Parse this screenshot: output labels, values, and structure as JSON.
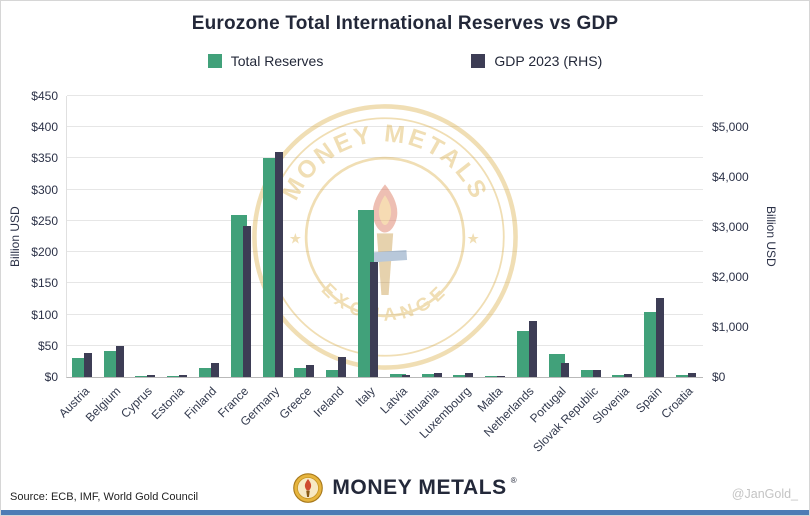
{
  "title": "Eurozone Total International Reserves vs GDP",
  "legend": [
    {
      "label": "Total Reserves",
      "color": "#41A17A"
    },
    {
      "label": "GDP 2023 (RHS)",
      "color": "#3D3D55"
    }
  ],
  "watermark": {
    "top_text": "MONEY METALS",
    "bottom_text": "EXCHANGE"
  },
  "footer": {
    "logo_text": "MONEY METALS",
    "reg_mark": "®",
    "source": "Source: ECB, IMF, World Gold Council",
    "handle": "@JanGold_"
  },
  "colors": {
    "reserves_green": "#41A17A",
    "gdp_navy": "#3D3D55",
    "accent_bar": "#4D7CB5",
    "watermark_gold": "#D9A93C",
    "title_text": "#232839"
  },
  "chart_data": {
    "type": "bar",
    "title": "Eurozone Total International Reserves vs GDP",
    "categories": [
      "Austria",
      "Belgium",
      "Cyprus",
      "Estonia",
      "Finland",
      "France",
      "Germany",
      "Greece",
      "Ireland",
      "Italy",
      "Latvia",
      "Lithuania",
      "Luxembourg",
      "Malta",
      "Netherlands",
      "Portugal",
      "Slovak Republic",
      "Slovenia",
      "Spain",
      "Croatia"
    ],
    "series": [
      {
        "name": "Total Reserves",
        "axis": "left",
        "unit": "Billion USD",
        "color": "#41A17A",
        "values": [
          30,
          42,
          2,
          2,
          15,
          260,
          350,
          14,
          11,
          267,
          5,
          5,
          3,
          1,
          74,
          37,
          11,
          3,
          104,
          3
        ]
      },
      {
        "name": "GDP 2023 (RHS)",
        "axis": "right",
        "unit": "Billion USD",
        "color": "#3D3D55",
        "values": [
          475,
          625,
          35,
          40,
          280,
          3030,
          4500,
          240,
          410,
          2300,
          45,
          80,
          85,
          20,
          1120,
          290,
          135,
          68,
          1580,
          80
        ]
      }
    ],
    "left_axis": {
      "label": "Billion USD",
      "min": 0,
      "max": 450,
      "tick_step": 50,
      "tick_values": [
        0,
        50,
        100,
        150,
        200,
        250,
        300,
        350,
        400,
        450
      ],
      "tick_labels": [
        "$0",
        "$50",
        "$100",
        "$150",
        "$200",
        "$250",
        "$300",
        "$350",
        "$400",
        "$450"
      ]
    },
    "right_axis": {
      "label": "Billion USD",
      "min": 0,
      "max": 5000,
      "tick_step": 1000,
      "units_per_left_unit": 12.5,
      "tick_values": [
        0,
        1000,
        2000,
        3000,
        4000,
        5000
      ],
      "tick_labels": [
        "$0",
        "$1,000",
        "$2,000",
        "$3,000",
        "$4,000",
        "$5,000"
      ]
    },
    "grid": true,
    "legend_position": "top"
  }
}
